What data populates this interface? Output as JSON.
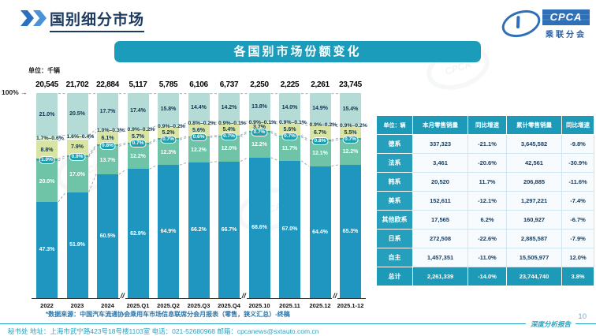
{
  "page": {
    "title": "国别细分市场",
    "page_number": "10",
    "footnote": "*数据来源：中国汽车流通协会乘用车市场信息联席分会月报表（零售，狭义汇总）-终稿",
    "footer_left": "秘书处  地址：上海市武宁路423号18号楼1103室  电话：021-52680968  邮箱：cpcanews@sxtauto.com.cn",
    "footer_right": "深度分析报告",
    "watermark": "CPCA"
  },
  "logo": {
    "cpca": "CPCA",
    "sub": "乘联分会"
  },
  "chart_data": {
    "type": "bar",
    "stacked": true,
    "title": "各国别市场份额变化",
    "unit_label": "单位：千辆",
    "y_top_label": "100%",
    "ylim": [
      0,
      100
    ],
    "categories": [
      "2022",
      "2023",
      "2024",
      "2025.Q1",
      "2025.Q2",
      "2025.Q3",
      "2025.Q4",
      "2025.10",
      "2025.11",
      "2025.12",
      "2025.1-12"
    ],
    "totals": [
      "20,545",
      "21,702",
      "22,884",
      "5,117",
      "5,785",
      "6,106",
      "6,737",
      "2,250",
      "2,225",
      "2,261",
      "23,745"
    ],
    "breaks_after": [
      2,
      6,
      9
    ],
    "series": [
      {
        "key": "german",
        "name": "德系",
        "color": "#b5dbd7",
        "values": [
          21.0,
          20.5,
          17.7,
          17.4,
          15.8,
          14.4,
          14.2,
          13.8,
          14.0,
          14.9,
          15.4
        ]
      },
      {
        "key": "french",
        "name": "法系",
        "color": "#eff5e9",
        "values": [
          0.6,
          0.4,
          0.3,
          0.2,
          0.2,
          0.2,
          0.1,
          0.1,
          0.1,
          0.2,
          0.2
        ]
      },
      {
        "key": "korean",
        "name": "韩系",
        "color": "#e2ecbe",
        "values": [
          1.7,
          1.6,
          1.0,
          0.9,
          0.9,
          0.8,
          0.9,
          0.9,
          0.9,
          0.9,
          0.9
        ]
      },
      {
        "key": "american",
        "name": "美系",
        "color": "#d7e4a3",
        "values": [
          8.8,
          7.9,
          6.1,
          5.7,
          5.2,
          5.6,
          5.4,
          3.7,
          5.6,
          6.7,
          5.5
        ]
      },
      {
        "key": "other-european",
        "name": "其他欧系",
        "color": "#2ba6ad",
        "values": [
          1.0,
          0.9,
          0.8,
          0.7,
          0.7,
          0.6,
          0.7,
          0.7,
          0.7,
          0.8,
          0.7
        ]
      },
      {
        "key": "japanese",
        "name": "日系",
        "color": "#6fc3a6",
        "values": [
          20.0,
          17.0,
          13.7,
          12.2,
          12.3,
          12.2,
          12.0,
          12.2,
          11.7,
          12.1,
          12.2
        ]
      },
      {
        "key": "domestic",
        "name": "自主",
        "color": "#1e96c0",
        "values": [
          47.3,
          51.9,
          60.5,
          62.9,
          64.9,
          66.2,
          66.7,
          68.6,
          67.0,
          64.4,
          65.3
        ]
      }
    ]
  },
  "table": {
    "unit_label": "单位：辆",
    "columns": [
      "本月零售销量",
      "同比增速",
      "累计零售销量",
      "同比增速"
    ],
    "rows": [
      {
        "key": "german",
        "name": "德系",
        "cells": [
          "337,323",
          "-21.1%",
          "3,645,582",
          "-9.8%"
        ]
      },
      {
        "key": "french",
        "name": "法系",
        "cells": [
          "3,461",
          "-20.6%",
          "42,561",
          "-30.9%"
        ]
      },
      {
        "key": "korean",
        "name": "韩系",
        "cells": [
          "20,520",
          "11.7%",
          "206,885",
          "-11.6%"
        ]
      },
      {
        "key": "american",
        "name": "美系",
        "cells": [
          "152,611",
          "-12.1%",
          "1,297,221",
          "-7.4%"
        ]
      },
      {
        "key": "other-european",
        "name": "其他欧系",
        "cells": [
          "17,565",
          "6.2%",
          "160,927",
          "-6.7%"
        ]
      },
      {
        "key": "japanese",
        "name": "日系",
        "cells": [
          "272,508",
          "-22.6%",
          "2,885,587",
          "-7.9%"
        ]
      },
      {
        "key": "domestic",
        "name": "自主",
        "cells": [
          "1,457,351",
          "-11.0%",
          "15,505,977",
          "12.0%"
        ]
      },
      {
        "key": "total",
        "name": "总计",
        "cells": [
          "2,261,339",
          "-14.0%",
          "23,744,740",
          "3.8%"
        ],
        "is_total": true
      }
    ]
  }
}
